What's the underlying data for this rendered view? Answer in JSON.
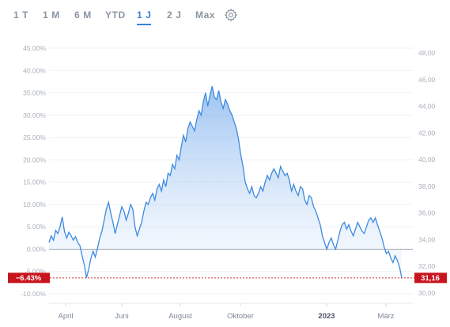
{
  "range_selector": {
    "options": [
      "1 T",
      "1 M",
      "6 M",
      "YTD",
      "1 J",
      "2 J",
      "Max"
    ],
    "active_index": 4,
    "settings_icon": "gear-icon"
  },
  "chart_data": {
    "type": "area",
    "title": "",
    "xlabel": "",
    "ylabel": "",
    "x_tick_labels": [
      "April",
      "Juni",
      "August",
      "Oktober",
      "2023",
      "März"
    ],
    "bold_x_tick": "2023",
    "left_axis": {
      "unit": "percent",
      "ticks": [
        "45.00%",
        "40.00%",
        "35.00%",
        "30.00%",
        "25.00%",
        "20.00%",
        "15.00%",
        "10.00%",
        "5.00%",
        "0.00%",
        "-5.00%",
        "-10.00%"
      ],
      "range": [
        -10,
        45
      ]
    },
    "right_axis": {
      "unit": "price",
      "ticks": [
        "48,00",
        "46,00",
        "44,00",
        "42,00",
        "40,00",
        "38,00",
        "36,00",
        "34,00",
        "32,00",
        "30,00"
      ],
      "range": [
        30,
        48
      ]
    },
    "grid": true,
    "current_change_label": "−6.43%",
    "current_price_label": "31,16",
    "current_change": -6.43,
    "series": [
      {
        "values": [
          1.5,
          3.0,
          2.0,
          4.2,
          3.5,
          5.0,
          7.2,
          4.0,
          2.5,
          3.8,
          3.0,
          2.0,
          2.8,
          1.5,
          0.8,
          -1.5,
          -3.5,
          -6.4,
          -4.5,
          -2.0,
          -0.5,
          -1.8,
          0.2,
          2.5,
          4.0,
          6.5,
          9.0,
          10.5,
          8.0,
          6.0,
          3.5,
          5.5,
          7.5,
          9.5,
          8.5,
          6.5,
          8.0,
          10.0,
          9.0,
          5.0,
          3.0,
          4.5,
          6.0,
          8.5,
          10.5,
          10.0,
          11.5,
          12.5,
          11.0,
          13.5,
          14.5,
          13.0,
          15.5,
          14.0,
          17.0,
          16.5,
          19.0,
          18.0,
          21.0,
          20.0,
          23.0,
          25.5,
          24.0,
          27.0,
          28.5,
          27.5,
          26.5,
          29.0,
          31.0,
          30.0,
          33.0,
          35.0,
          32.0,
          34.5,
          36.5,
          34.0,
          33.5,
          35.5,
          33.0,
          31.5,
          33.5,
          32.5,
          31.0,
          30.0,
          28.5,
          27.0,
          24.5,
          21.0,
          18.5,
          15.0,
          13.5,
          12.5,
          14.0,
          12.0,
          11.5,
          12.5,
          14.0,
          13.0,
          15.0,
          16.5,
          15.5,
          17.0,
          18.0,
          17.0,
          16.0,
          18.5,
          17.5,
          16.5,
          17.0,
          15.5,
          13.0,
          14.5,
          13.0,
          12.0,
          14.0,
          13.5,
          11.0,
          10.0,
          12.0,
          11.5,
          9.5,
          8.5,
          7.0,
          5.5,
          3.0,
          1.5,
          0.0,
          1.5,
          2.5,
          1.0,
          0.0,
          2.0,
          4.0,
          5.5,
          6.0,
          4.5,
          5.5,
          4.0,
          3.0,
          4.5,
          6.0,
          5.0,
          4.0,
          3.5,
          5.0,
          6.5,
          7.0,
          6.0,
          7.0,
          5.5,
          4.0,
          2.5,
          0.5,
          -1.0,
          -0.5,
          -2.0,
          -3.0,
          -1.5,
          -2.5,
          -4.0,
          -6.43
        ]
      }
    ]
  }
}
